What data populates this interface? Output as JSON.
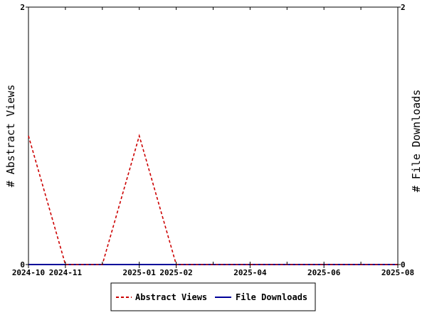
{
  "chart_data": {
    "type": "line",
    "title": "",
    "y_left_label": "# Abstract Views",
    "y_right_label": "# File Downloads",
    "x_ticks": [
      "2024-10",
      "2024-11",
      "2025-01",
      "2025-02",
      "2025-04",
      "2025-06",
      "2025-08"
    ],
    "x_range": [
      "2024-10",
      "2025-08"
    ],
    "y_left_range": [
      0,
      2
    ],
    "y_right_range": [
      0,
      2
    ],
    "y_left_ticks": [
      "0",
      "2"
    ],
    "y_right_ticks": [
      "0",
      "2"
    ],
    "grid": false,
    "legend_position": "bottom",
    "x": [
      "2024-10",
      "2024-11",
      "2024-12",
      "2025-01",
      "2025-02",
      "2025-03",
      "2025-04",
      "2025-05",
      "2025-06",
      "2025-07",
      "2025-08"
    ],
    "series": [
      {
        "name": "Abstract Views",
        "axis": "left",
        "color": "#cc0000",
        "dash": "dashed",
        "values": [
          1,
          0,
          0,
          1,
          0,
          0,
          0,
          0,
          0,
          0,
          0
        ]
      },
      {
        "name": "File Downloads",
        "axis": "right",
        "color": "#000099",
        "dash": "solid",
        "values": [
          0,
          0,
          0,
          0,
          0,
          0,
          0,
          0,
          0,
          0,
          0
        ]
      }
    ]
  }
}
